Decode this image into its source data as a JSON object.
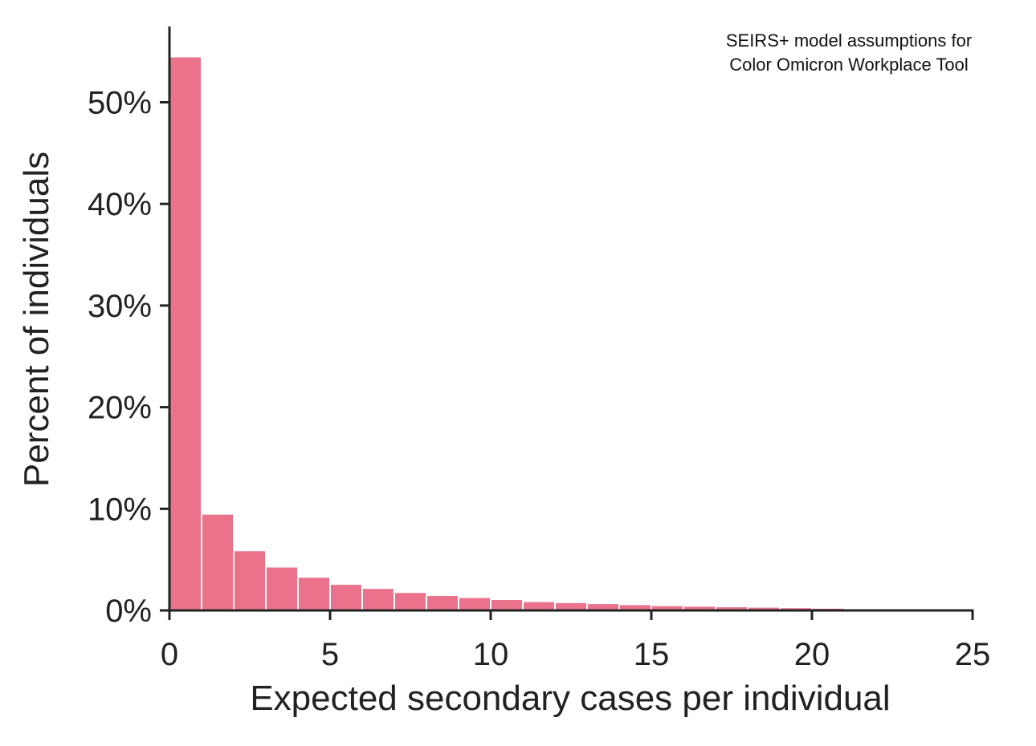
{
  "chart_data": {
    "type": "bar",
    "annotation": [
      "SEIRS+ model assumptions for",
      "Color Omicron Workplace Tool"
    ],
    "xlabel": "Expected secondary cases per individual",
    "ylabel": "Percent of individuals",
    "xlim": [
      0,
      25
    ],
    "ylim": [
      0,
      57
    ],
    "x_ticks": [
      0,
      5,
      10,
      15,
      20,
      25
    ],
    "x_tick_labels": [
      "0",
      "5",
      "10",
      "15",
      "20",
      "25"
    ],
    "y_ticks": [
      0,
      10,
      20,
      30,
      40,
      50
    ],
    "y_tick_labels": [
      "0%",
      "10%",
      "20%",
      "30%",
      "40%",
      "50%"
    ],
    "bar_color": "#EA728B",
    "bin_width": 1,
    "bin_starts": [
      0,
      1,
      2,
      3,
      4,
      5,
      6,
      7,
      8,
      9,
      10,
      11,
      12,
      13,
      14,
      15,
      16,
      17,
      18,
      19,
      20,
      21,
      22,
      23,
      24
    ],
    "values": [
      54.5,
      9.5,
      5.9,
      4.3,
      3.3,
      2.6,
      2.2,
      1.8,
      1.5,
      1.3,
      1.1,
      0.9,
      0.8,
      0.7,
      0.6,
      0.5,
      0.45,
      0.4,
      0.35,
      0.3,
      0.25,
      0.2,
      0.15,
      0.12,
      0.1
    ],
    "grid": false,
    "legend": "none"
  }
}
